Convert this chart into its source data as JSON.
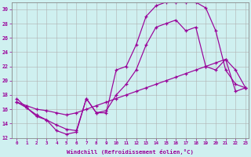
{
  "xlabel": "Windchill (Refroidissement éolien,°C)",
  "xlim": [
    -0.5,
    23.3
  ],
  "ylim": [
    12,
    31
  ],
  "yticks": [
    12,
    14,
    16,
    18,
    20,
    22,
    24,
    26,
    28,
    30
  ],
  "xticks": [
    0,
    1,
    2,
    3,
    4,
    5,
    6,
    7,
    8,
    9,
    10,
    11,
    12,
    13,
    14,
    15,
    16,
    17,
    18,
    19,
    20,
    21,
    22,
    23
  ],
  "background_color": "#cff0f0",
  "line_color": "#990099",
  "grid_color": "#b0b0b0",
  "line1_x": [
    0,
    1,
    2,
    3,
    4,
    5,
    6,
    7,
    8,
    9,
    10,
    11,
    12,
    13,
    14,
    15,
    16,
    17,
    18,
    19,
    20,
    21,
    22,
    23
  ],
  "line1_y": [
    17.5,
    16.2,
    15.0,
    14.5,
    13.0,
    12.5,
    12.8,
    17.5,
    15.5,
    15.5,
    21.5,
    22.0,
    25.0,
    29.0,
    30.5,
    31.0,
    31.0,
    31.0,
    31.0,
    30.2,
    27.0,
    21.5,
    19.5,
    19.0
  ],
  "line2_x": [
    0,
    1,
    2,
    3,
    4,
    5,
    6,
    7,
    8,
    9,
    10,
    11,
    12,
    13,
    14,
    15,
    16,
    17,
    18,
    19,
    20,
    21,
    22,
    23
  ],
  "line2_y": [
    17.0,
    16.5,
    16.0,
    15.8,
    15.5,
    15.2,
    15.5,
    16.0,
    16.5,
    17.0,
    17.5,
    18.0,
    18.5,
    19.0,
    19.5,
    20.0,
    20.5,
    21.0,
    21.5,
    22.0,
    22.5,
    23.0,
    18.5,
    19.0
  ],
  "line3_x": [
    0,
    1,
    2,
    3,
    4,
    5,
    6,
    7,
    8,
    9,
    10,
    11,
    12,
    13,
    14,
    15,
    16,
    17,
    18,
    19,
    20,
    21,
    22,
    23
  ],
  "line3_y": [
    17.0,
    16.2,
    15.2,
    14.5,
    13.8,
    13.2,
    13.0,
    17.5,
    15.5,
    15.8,
    18.0,
    19.5,
    21.5,
    25.0,
    27.5,
    28.0,
    28.5,
    27.0,
    27.5,
    22.0,
    21.5,
    23.0,
    21.5,
    19.0
  ]
}
